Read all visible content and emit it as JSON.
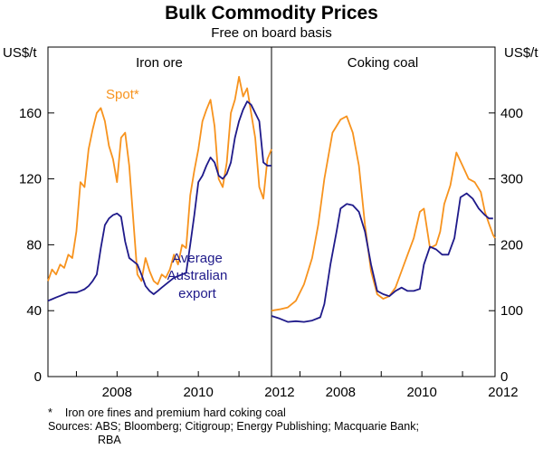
{
  "chart_data": {
    "type": "line",
    "title": "Bulk Commodity Prices",
    "subtitle": "Free on board basis",
    "units": {
      "left": "US$/t",
      "right": "US$/t"
    },
    "colors": {
      "spot": "#f7931e",
      "export": "#1f1a8a",
      "frame": "#000000"
    },
    "x_ticks": [
      "2008",
      "2010",
      "2012"
    ],
    "panels": [
      {
        "name": "Iron ore",
        "axis": "left",
        "ylim": [
          0,
          200
        ],
        "yticks": [
          0,
          40,
          80,
          120,
          160
        ],
        "xlim": [
          2006.3,
          2011.8
        ],
        "annotations": {
          "spot_label": "Spot*",
          "export_label": [
            "Average",
            "Australian",
            "export"
          ]
        },
        "series": [
          {
            "name": "Spot*",
            "color": "#f7931e",
            "x": [
              2006.3,
              2006.4,
              2006.5,
              2006.6,
              2006.7,
              2006.8,
              2006.9,
              2007.0,
              2007.1,
              2007.2,
              2007.3,
              2007.4,
              2007.5,
              2007.6,
              2007.7,
              2007.8,
              2007.9,
              2008.0,
              2008.1,
              2008.2,
              2008.3,
              2008.4,
              2008.5,
              2008.6,
              2008.7,
              2008.8,
              2008.9,
              2009.0,
              2009.1,
              2009.2,
              2009.3,
              2009.4,
              2009.5,
              2009.6,
              2009.7,
              2009.8,
              2009.9,
              2010.0,
              2010.1,
              2010.2,
              2010.3,
              2010.4,
              2010.5,
              2010.6,
              2010.7,
              2010.8,
              2010.9,
              2011.0,
              2011.1,
              2011.2,
              2011.3,
              2011.4,
              2011.5,
              2011.6,
              2011.7,
              2011.8
            ],
            "values": [
              58,
              65,
              62,
              68,
              66,
              74,
              72,
              88,
              118,
              115,
              138,
              150,
              160,
              163,
              155,
              140,
              132,
              118,
              145,
              148,
              128,
              95,
              62,
              58,
              72,
              64,
              58,
              56,
              62,
              60,
              65,
              74,
              68,
              80,
              78,
              110,
              125,
              138,
              155,
              162,
              168,
              152,
              120,
              115,
              130,
              160,
              168,
              182,
              170,
              175,
              160,
              145,
              115,
              108,
              132,
              138
            ]
          },
          {
            "name": "Average Australian export",
            "color": "#1f1a8a",
            "x": [
              2006.3,
              2006.4,
              2006.5,
              2006.6,
              2006.7,
              2006.8,
              2006.9,
              2007.0,
              2007.1,
              2007.2,
              2007.3,
              2007.4,
              2007.5,
              2007.6,
              2007.7,
              2007.8,
              2007.9,
              2008.0,
              2008.1,
              2008.2,
              2008.3,
              2008.4,
              2008.5,
              2008.6,
              2008.7,
              2008.8,
              2008.9,
              2009.0,
              2009.1,
              2009.2,
              2009.3,
              2009.4,
              2009.5,
              2009.6,
              2009.7,
              2009.8,
              2009.9,
              2010.0,
              2010.1,
              2010.2,
              2010.3,
              2010.4,
              2010.5,
              2010.6,
              2010.7,
              2010.8,
              2010.9,
              2011.0,
              2011.1,
              2011.2,
              2011.3,
              2011.4,
              2011.5,
              2011.6,
              2011.7,
              2011.8
            ],
            "values": [
              46,
              47,
              48,
              49,
              50,
              51,
              51,
              51,
              52,
              53,
              55,
              58,
              62,
              78,
              92,
              96,
              98,
              99,
              97,
              82,
              72,
              70,
              68,
              62,
              55,
              52,
              50,
              52,
              54,
              56,
              58,
              60,
              61,
              62,
              63,
              80,
              98,
              118,
              122,
              128,
              133,
              130,
              122,
              120,
              123,
              130,
              145,
              155,
              162,
              167,
              165,
              160,
              155,
              130,
              128,
              128
            ]
          }
        ]
      },
      {
        "name": "Coking coal",
        "axis": "right",
        "ylim": [
          0,
          500
        ],
        "yticks": [
          0,
          100,
          200,
          300,
          400
        ],
        "xlim": [
          2006.3,
          2011.8
        ],
        "annotations": {},
        "series": [
          {
            "name": "Spot*",
            "color": "#f7931e",
            "x": [
              2006.3,
              2006.5,
              2006.7,
              2006.9,
              2007.1,
              2007.3,
              2007.45,
              2007.6,
              2007.8,
              2008.0,
              2008.15,
              2008.3,
              2008.45,
              2008.6,
              2008.75,
              2008.9,
              2009.05,
              2009.2,
              2009.35,
              2009.5,
              2009.65,
              2009.8,
              2009.95,
              2010.05,
              2010.2,
              2010.35,
              2010.45,
              2010.55,
              2010.7,
              2010.85,
              2011.0,
              2011.15,
              2011.3,
              2011.45,
              2011.55,
              2011.65,
              2011.75,
              2011.8
            ],
            "values": [
              100,
              102,
              105,
              115,
              140,
              180,
              230,
              300,
              370,
              390,
              395,
              370,
              320,
              230,
              160,
              125,
              118,
              122,
              135,
              160,
              185,
              210,
              250,
              255,
              195,
              200,
              220,
              262,
              290,
              340,
              320,
              300,
              295,
              280,
              250,
              232,
              215,
              210
            ]
          },
          {
            "name": "Average Australian export",
            "color": "#1f1a8a",
            "x": [
              2006.3,
              2006.5,
              2006.7,
              2006.9,
              2007.1,
              2007.3,
              2007.5,
              2007.6,
              2007.75,
              2007.9,
              2008.0,
              2008.15,
              2008.3,
              2008.45,
              2008.6,
              2008.75,
              2008.9,
              2009.05,
              2009.2,
              2009.35,
              2009.5,
              2009.65,
              2009.8,
              2009.95,
              2010.05,
              2010.2,
              2010.35,
              2010.5,
              2010.65,
              2010.8,
              2010.95,
              2011.1,
              2011.25,
              2011.4,
              2011.55,
              2011.65,
              2011.75
            ],
            "values": [
              92,
              88,
              83,
              84,
              83,
              85,
              90,
              110,
              170,
              220,
              255,
              262,
              260,
              250,
              220,
              170,
              130,
              125,
              122,
              130,
              135,
              130,
              130,
              133,
              170,
              197,
              193,
              185,
              185,
              210,
              272,
              278,
              270,
              255,
              245,
              240,
              240
            ]
          }
        ]
      }
    ],
    "footnote": {
      "marker": "*",
      "text": "Iron ore fines and premium hard coking coal"
    },
    "sources": {
      "line1": "Sources: ABS; Bloomberg; Citigroup; Energy Publishing; Macquarie Bank;",
      "line2": "RBA"
    }
  }
}
